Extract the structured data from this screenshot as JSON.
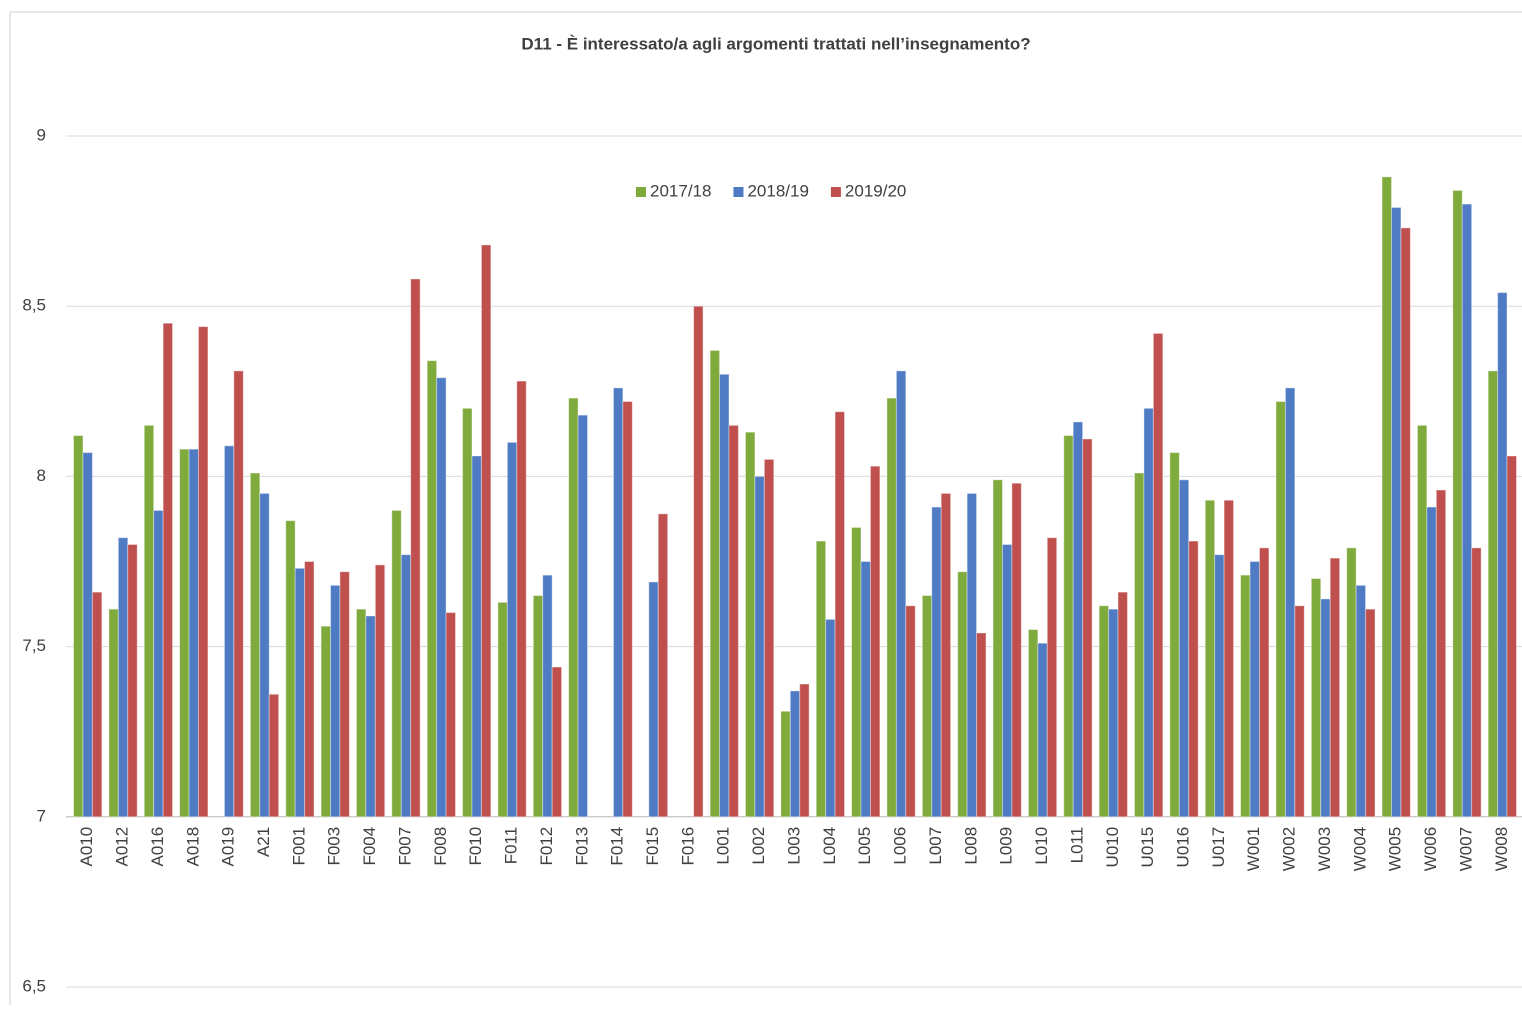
{
  "chart_data": {
    "type": "bar",
    "title": "D11 - È interessato/a agli argomenti trattati nell’insegnamento?",
    "categories": [
      "A010",
      "A012",
      "A016",
      "A018",
      "A019",
      "A21",
      "F001",
      "F003",
      "F004",
      "F007",
      "F008",
      "F010",
      "F011",
      "F012",
      "F013",
      "F014",
      "F015",
      "F016",
      "L001",
      "L002",
      "L003",
      "L004",
      "L005",
      "L006",
      "L007",
      "L008",
      "L009",
      "L010",
      "L011",
      "U010",
      "U015",
      "U016",
      "U017",
      "W001",
      "W002",
      "W003",
      "W004",
      "W005",
      "W006",
      "W007",
      "W008"
    ],
    "series": [
      {
        "name": "2017/18",
        "color": "#7faa3c",
        "values": [
          8.12,
          7.61,
          8.15,
          8.08,
          null,
          8.01,
          7.87,
          7.56,
          7.61,
          7.9,
          8.34,
          8.2,
          7.63,
          7.65,
          8.23,
          null,
          null,
          null,
          8.37,
          8.13,
          7.31,
          7.81,
          7.85,
          8.23,
          7.65,
          7.72,
          7.99,
          7.55,
          8.12,
          7.62,
          8.01,
          8.07,
          7.93,
          7.71,
          8.22,
          7.7,
          7.79,
          8.88,
          8.15,
          8.84,
          8.31
        ]
      },
      {
        "name": "2018/19",
        "color": "#4f7bc4",
        "values": [
          8.07,
          7.82,
          7.9,
          8.08,
          8.09,
          7.95,
          7.73,
          7.68,
          7.59,
          7.77,
          8.29,
          8.06,
          8.1,
          7.71,
          8.18,
          8.26,
          7.69,
          null,
          8.3,
          8.0,
          7.37,
          7.58,
          7.75,
          8.31,
          7.91,
          7.95,
          7.8,
          7.51,
          8.16,
          7.61,
          8.2,
          7.99,
          7.77,
          7.75,
          8.26,
          7.64,
          7.68,
          8.79,
          7.91,
          8.8,
          8.54
        ]
      },
      {
        "name": "2019/20",
        "color": "#c0504d",
        "values": [
          7.66,
          7.8,
          8.45,
          8.44,
          8.31,
          7.36,
          7.75,
          7.72,
          7.74,
          8.58,
          7.6,
          8.68,
          8.28,
          7.44,
          null,
          8.22,
          7.89,
          8.5,
          8.15,
          8.05,
          7.39,
          8.19,
          8.03,
          7.62,
          7.95,
          7.54,
          7.98,
          7.82,
          8.11,
          7.66,
          8.42,
          7.81,
          7.93,
          7.79,
          7.62,
          7.76,
          7.61,
          8.73,
          7.96,
          7.79,
          8.06
        ]
      }
    ],
    "ylim": [
      6.5,
      9
    ],
    "yticks": [
      {
        "value": 6.5,
        "label": "6,5"
      },
      7,
      {
        "value": 7.5,
        "label": "7,5"
      },
      8,
      {
        "value": 8.5,
        "label": "8,5"
      },
      9
    ],
    "x_axis_crossing": 7,
    "grid": true,
    "legend": "top"
  }
}
